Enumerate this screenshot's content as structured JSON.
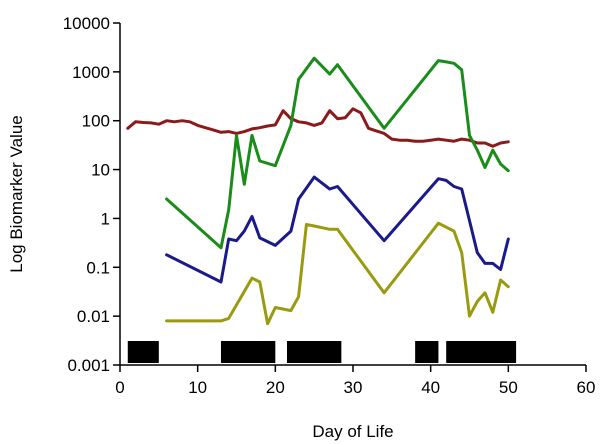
{
  "chart_data": {
    "type": "line",
    "xlabel": "Day of Life",
    "ylabel": "Log Biomarker Value",
    "xlim": [
      0,
      60
    ],
    "ylim": [
      0.001,
      10000
    ],
    "y_scale": "log",
    "x_ticks": [
      0,
      10,
      20,
      30,
      40,
      50,
      60
    ],
    "x_tick_labels": [
      "0",
      "10",
      "20",
      "30",
      "40",
      "50",
      "60"
    ],
    "y_ticks": [
      0.001,
      0.01,
      0.1,
      1,
      10,
      100,
      1000,
      10000
    ],
    "y_tick_labels": [
      "0.001",
      "0.01",
      "0.1",
      "1",
      "10",
      "100",
      "1000",
      "10000"
    ],
    "grid": false,
    "legend": "none",
    "series": [
      {
        "color": "#8b1a1a",
        "x": [
          1,
          2,
          3,
          4,
          5,
          6,
          7,
          8,
          9,
          10,
          11,
          12,
          13,
          14,
          15,
          16,
          17,
          18,
          19,
          20,
          21,
          22,
          23,
          24,
          25,
          26,
          27,
          28,
          29,
          30,
          31,
          32,
          33,
          34,
          35,
          36,
          37,
          38,
          39,
          40,
          41,
          42,
          43,
          44,
          45,
          46,
          47,
          48,
          49,
          50
        ],
        "y": [
          70,
          95,
          92,
          90,
          85,
          100,
          95,
          100,
          95,
          80,
          72,
          65,
          58,
          60,
          55,
          60,
          68,
          72,
          78,
          82,
          160,
          110,
          95,
          90,
          80,
          90,
          160,
          110,
          115,
          175,
          145,
          70,
          62,
          55,
          42,
          40,
          40,
          38,
          38,
          40,
          42,
          40,
          38,
          42,
          40,
          35,
          35,
          30,
          35,
          37
        ]
      },
      {
        "color": "#1a8c1a",
        "x": [
          6,
          13,
          14,
          15,
          16,
          17,
          18,
          20,
          22,
          23,
          25,
          27,
          28,
          34,
          41,
          42,
          43,
          44,
          45,
          46,
          47,
          48,
          49,
          50
        ],
        "y": [
          2.5,
          0.25,
          1.5,
          50,
          5,
          50,
          15,
          12,
          80,
          700,
          1900,
          900,
          1400,
          70,
          1700,
          1600,
          1500,
          1100,
          50,
          25,
          11,
          25,
          13,
          9.5
        ]
      },
      {
        "color": "#1a1a8c",
        "x": [
          6,
          13,
          14,
          15,
          16,
          17,
          18,
          20,
          22,
          23,
          25,
          27,
          28,
          34,
          41,
          42,
          43,
          44,
          45,
          46,
          47,
          48,
          49,
          50
        ],
        "y": [
          0.18,
          0.05,
          0.38,
          0.35,
          0.55,
          1.1,
          0.4,
          0.28,
          0.55,
          2.5,
          7,
          4,
          4.5,
          0.35,
          6.5,
          6,
          4.5,
          4,
          0.9,
          0.2,
          0.12,
          0.12,
          0.09,
          0.38
        ]
      },
      {
        "color": "#9a9a10",
        "x": [
          6,
          13,
          14,
          17,
          18,
          19,
          20,
          22,
          23,
          24,
          25,
          27,
          28,
          34,
          41,
          43,
          44,
          45,
          46,
          47,
          48,
          49,
          50
        ],
        "y": [
          0.008,
          0.008,
          0.009,
          0.06,
          0.05,
          0.007,
          0.015,
          0.013,
          0.025,
          0.75,
          0.7,
          0.6,
          0.6,
          0.03,
          0.8,
          0.55,
          0.2,
          0.01,
          0.02,
          0.03,
          0.012,
          0.055,
          0.04
        ]
      }
    ],
    "bars": [
      {
        "start": 1,
        "end": 5
      },
      {
        "start": 13,
        "end": 20
      },
      {
        "start": 21.5,
        "end": 28.5
      },
      {
        "start": 38,
        "end": 41
      },
      {
        "start": 42,
        "end": 51
      }
    ]
  }
}
